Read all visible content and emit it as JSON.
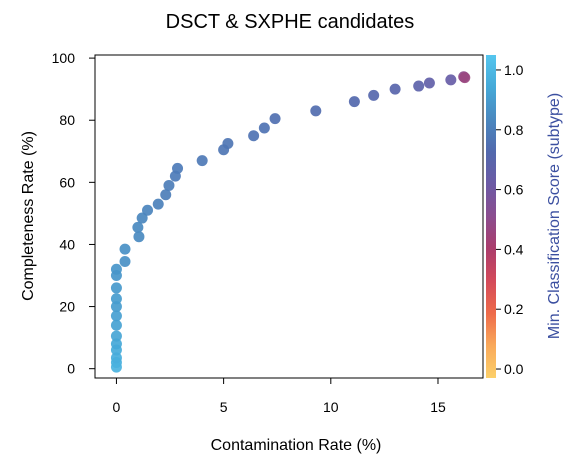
{
  "chart_data": {
    "type": "scatter",
    "title": "DSCT & SXPHE candidates",
    "xlabel": "Contamination Rate (%)",
    "ylabel": "Completeness Rate (%)",
    "xlim": [
      -1,
      17.1
    ],
    "ylim": [
      -3,
      101
    ],
    "x_ticks": [
      0,
      5,
      10,
      15
    ],
    "y_ticks": [
      0,
      20,
      40,
      60,
      80,
      100
    ],
    "grid": false,
    "colorbar": {
      "label": "Min. Classification Score (subtype)",
      "range": [
        -0.03,
        1.05
      ],
      "ticks": [
        0.0,
        0.2,
        0.4,
        0.6,
        0.8,
        1.0
      ],
      "tick_labels": [
        "0.0",
        "0.2",
        "0.4",
        "0.6",
        "0.8",
        "1.0"
      ],
      "colormap": [
        "#fcd06a",
        "#f9a95a",
        "#ee6b4a",
        "#d44a5a",
        "#ab3d6c",
        "#8b4d8f",
        "#6c5aa5",
        "#5269ad",
        "#4a88bf",
        "#45a9d8",
        "#55c6ee"
      ]
    },
    "points": [
      {
        "x": 0.0,
        "y": 0.5,
        "c": 0.98
      },
      {
        "x": 0.0,
        "y": 2.0,
        "c": 0.97
      },
      {
        "x": 0.0,
        "y": 3.5,
        "c": 0.96
      },
      {
        "x": 0.0,
        "y": 6.0,
        "c": 0.95
      },
      {
        "x": 0.0,
        "y": 8.0,
        "c": 0.94
      },
      {
        "x": 0.0,
        "y": 10.5,
        "c": 0.93
      },
      {
        "x": 0.0,
        "y": 14.0,
        "c": 0.92
      },
      {
        "x": 0.0,
        "y": 17.0,
        "c": 0.91
      },
      {
        "x": 0.0,
        "y": 20.0,
        "c": 0.9
      },
      {
        "x": 0.0,
        "y": 22.5,
        "c": 0.9
      },
      {
        "x": 0.0,
        "y": 26.0,
        "c": 0.89
      },
      {
        "x": 0.0,
        "y": 30.0,
        "c": 0.88
      },
      {
        "x": 0.0,
        "y": 32.0,
        "c": 0.88
      },
      {
        "x": 0.4,
        "y": 34.5,
        "c": 0.86
      },
      {
        "x": 0.4,
        "y": 38.5,
        "c": 0.86
      },
      {
        "x": 1.05,
        "y": 42.5,
        "c": 0.84
      },
      {
        "x": 1.0,
        "y": 45.5,
        "c": 0.84
      },
      {
        "x": 1.2,
        "y": 48.5,
        "c": 0.83
      },
      {
        "x": 1.45,
        "y": 51.0,
        "c": 0.82
      },
      {
        "x": 1.95,
        "y": 53.0,
        "c": 0.81
      },
      {
        "x": 2.3,
        "y": 56.0,
        "c": 0.8
      },
      {
        "x": 2.45,
        "y": 59.0,
        "c": 0.8
      },
      {
        "x": 2.75,
        "y": 62.0,
        "c": 0.79
      },
      {
        "x": 2.85,
        "y": 64.5,
        "c": 0.79
      },
      {
        "x": 4.0,
        "y": 67.0,
        "c": 0.78
      },
      {
        "x": 5.0,
        "y": 70.5,
        "c": 0.77
      },
      {
        "x": 5.2,
        "y": 72.5,
        "c": 0.77
      },
      {
        "x": 6.4,
        "y": 75.0,
        "c": 0.76
      },
      {
        "x": 6.9,
        "y": 77.5,
        "c": 0.76
      },
      {
        "x": 7.4,
        "y": 80.5,
        "c": 0.75
      },
      {
        "x": 9.3,
        "y": 83.0,
        "c": 0.74
      },
      {
        "x": 11.1,
        "y": 86.0,
        "c": 0.72
      },
      {
        "x": 12.0,
        "y": 88.0,
        "c": 0.71
      },
      {
        "x": 13.0,
        "y": 90.0,
        "c": 0.7
      },
      {
        "x": 14.1,
        "y": 91.0,
        "c": 0.68
      },
      {
        "x": 14.6,
        "y": 92.0,
        "c": 0.66
      },
      {
        "x": 15.6,
        "y": 93.0,
        "c": 0.64
      },
      {
        "x": 16.2,
        "y": 94.0,
        "c": 0.5
      },
      {
        "x": 16.25,
        "y": 93.7,
        "c": 0.46
      }
    ]
  }
}
